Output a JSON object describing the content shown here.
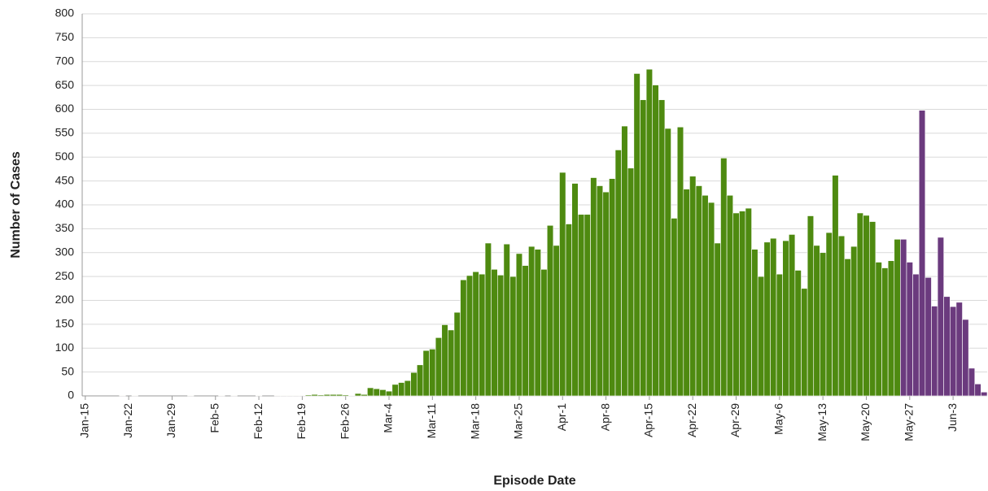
{
  "chart_data": {
    "type": "bar",
    "x_label": "Episode Date",
    "y_label": "Number of Cases",
    "categories": [
      "Jan-15",
      null,
      null,
      null,
      null,
      null,
      null,
      "Jan-22",
      null,
      null,
      null,
      null,
      null,
      null,
      "Jan-29",
      null,
      null,
      null,
      null,
      null,
      null,
      "Feb-5",
      null,
      null,
      null,
      null,
      null,
      null,
      "Feb-12",
      null,
      null,
      null,
      null,
      null,
      null,
      "Feb-19",
      null,
      null,
      null,
      null,
      null,
      null,
      "Feb-26",
      null,
      null,
      null,
      null,
      null,
      null,
      "Mar-4",
      null,
      null,
      null,
      null,
      null,
      null,
      "Mar-11",
      null,
      null,
      null,
      null,
      null,
      null,
      "Mar-18",
      null,
      null,
      null,
      null,
      null,
      null,
      "Mar-25",
      null,
      null,
      null,
      null,
      null,
      null,
      "Apr-1",
      null,
      null,
      null,
      null,
      null,
      null,
      "Apr-8",
      null,
      null,
      null,
      null,
      null,
      null,
      "Apr-15",
      null,
      null,
      null,
      null,
      null,
      null,
      "Apr-22",
      null,
      null,
      null,
      null,
      null,
      null,
      "Apr-29",
      null,
      null,
      null,
      null,
      null,
      null,
      "May-6",
      null,
      null,
      null,
      null,
      null,
      null,
      "May-13",
      null,
      null,
      null,
      null,
      null,
      null,
      "May-20",
      null,
      null,
      null,
      null,
      null,
      null,
      "May-27",
      null,
      null,
      null,
      null,
      null,
      null,
      "Jun-3",
      null,
      null,
      null,
      null,
      null
    ],
    "series": [
      {
        "color": "#4e8a10",
        "values": [
          0,
          0,
          0,
          0,
          0,
          0,
          1,
          0,
          1,
          0,
          0,
          0,
          0,
          0,
          0,
          0,
          0,
          1,
          0,
          0,
          0,
          0,
          1,
          0,
          1,
          0,
          0,
          0,
          1,
          0,
          0,
          1,
          1,
          1,
          1,
          1,
          2,
          3,
          2,
          3,
          3,
          3,
          2,
          1,
          5,
          3,
          17,
          15,
          13,
          10,
          24,
          28,
          32,
          49,
          65,
          95,
          98,
          122,
          149,
          138,
          175,
          243,
          252,
          260,
          255,
          320,
          265,
          253,
          318,
          250,
          298,
          273,
          313,
          307,
          265,
          357,
          315,
          468,
          360,
          445,
          380,
          380,
          457,
          440,
          427,
          455,
          515,
          565,
          477,
          675,
          620,
          684,
          651,
          620,
          560,
          372,
          563,
          433,
          460,
          440,
          420,
          405,
          320,
          498,
          420,
          383,
          387,
          393,
          307,
          250,
          322,
          330,
          255,
          325,
          338,
          263,
          225,
          377,
          315,
          300,
          342,
          462,
          335,
          287,
          313,
          383,
          378,
          365,
          280,
          268,
          283,
          328,
          null,
          null,
          null,
          null,
          null,
          null,
          null,
          null,
          null,
          null,
          null,
          null,
          null,
          null
        ]
      },
      {
        "color": "#6b3a7e",
        "values": [
          null,
          null,
          null,
          null,
          null,
          null,
          null,
          null,
          null,
          null,
          null,
          null,
          null,
          null,
          null,
          null,
          null,
          null,
          null,
          null,
          null,
          null,
          null,
          null,
          null,
          null,
          null,
          null,
          null,
          null,
          null,
          null,
          null,
          null,
          null,
          null,
          null,
          null,
          null,
          null,
          null,
          null,
          null,
          null,
          null,
          null,
          null,
          null,
          null,
          null,
          null,
          null,
          null,
          null,
          null,
          null,
          null,
          null,
          null,
          null,
          null,
          null,
          null,
          null,
          null,
          null,
          null,
          null,
          null,
          null,
          null,
          null,
          null,
          null,
          null,
          null,
          null,
          null,
          null,
          null,
          null,
          null,
          null,
          null,
          null,
          null,
          null,
          null,
          null,
          null,
          null,
          null,
          null,
          null,
          null,
          null,
          null,
          null,
          null,
          null,
          null,
          null,
          null,
          null,
          null,
          null,
          null,
          null,
          null,
          null,
          null,
          null,
          null,
          null,
          null,
          null,
          null,
          null,
          null,
          null,
          null,
          null,
          null,
          null,
          null,
          null,
          null,
          null,
          null,
          null,
          null,
          null,
          328,
          280,
          255,
          598,
          248,
          188,
          332,
          208,
          187,
          196,
          160,
          58,
          25,
          8
        ]
      }
    ],
    "ylim": [
      0,
      800
    ],
    "yticks": [
      0,
      50,
      100,
      150,
      200,
      250,
      300,
      350,
      400,
      450,
      500,
      550,
      600,
      650,
      700,
      750,
      800
    ],
    "grid": true
  }
}
